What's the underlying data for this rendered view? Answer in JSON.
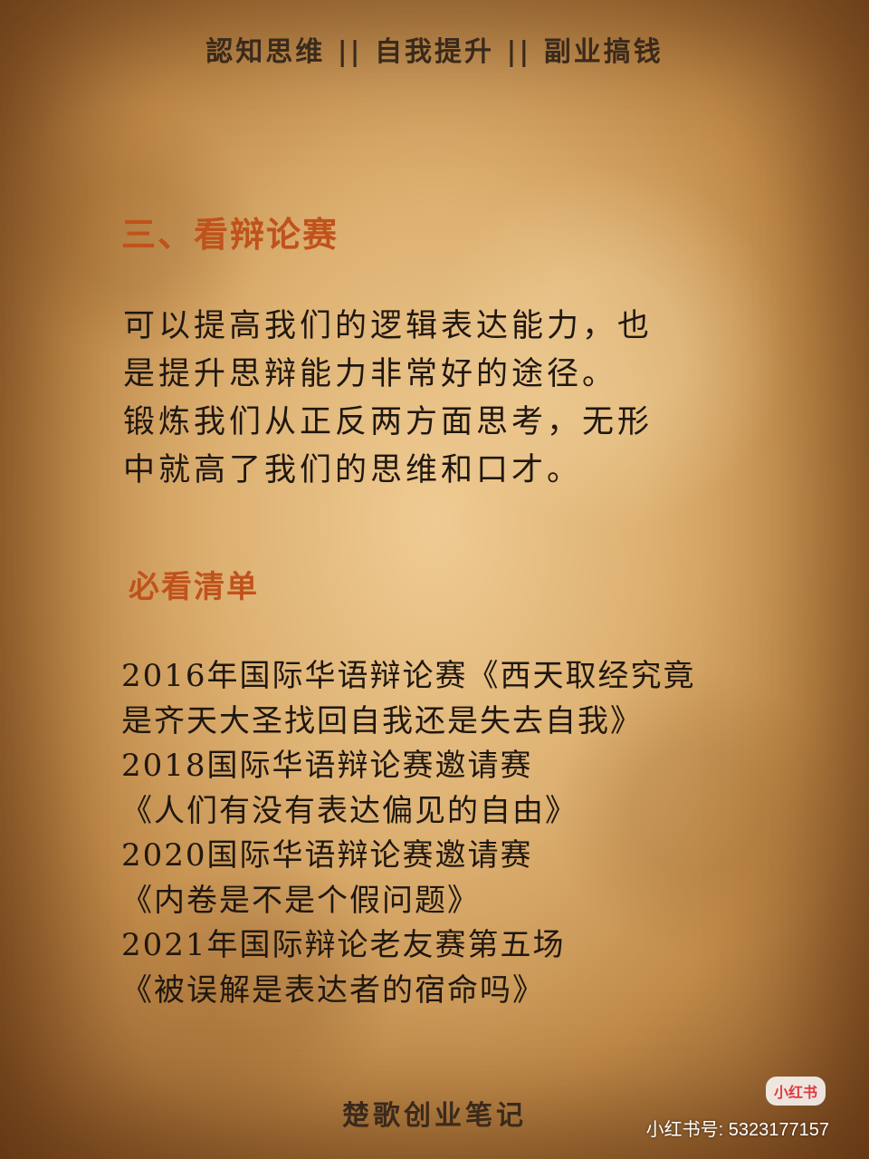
{
  "header": {
    "text": "認知思维 || 自我提升 || 副业搞钱"
  },
  "section": {
    "title": "三、看辩论赛",
    "lines": [
      "可以提高我们的逻辑表达能力，也",
      "是提升思辩能力非常好的途径。",
      "锻炼我们从正反两方面思考，无形",
      "中就高了我们的思维和口才。"
    ]
  },
  "must_watch": {
    "title": "必看清单",
    "lines": [
      "2016年国际华语辩论赛《西天取经究竟",
      "是齐天大圣找回自我还是失去自我》",
      "2018国际华语辩论赛邀请赛",
      "《人们有没有表达偏见的自由》",
      "2020国际华语辩论赛邀请赛",
      "《内卷是不是个假问题》",
      "2021年国际辩论老友赛第五场",
      "《被误解是表达者的宿命吗》"
    ]
  },
  "footer": {
    "text": "楚歌创业笔记"
  },
  "watermark": {
    "logo": "小红书",
    "id": "小红书号: 5323177157"
  },
  "colors": {
    "heading": "#c0521c",
    "body_text": "#1f1710",
    "paper": "#d7a866"
  }
}
